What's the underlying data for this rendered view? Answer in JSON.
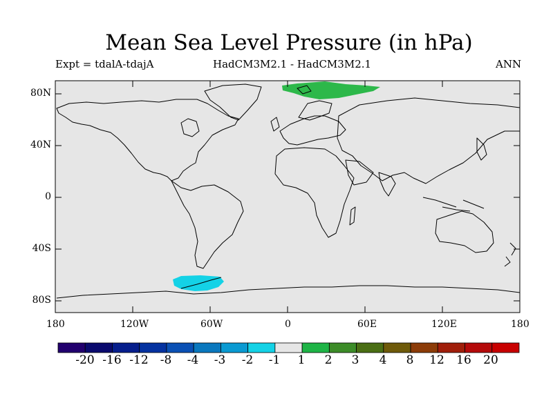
{
  "title": "Mean Sea Level Pressure (in hPa)",
  "subtitle_left": "Expt = tdalA-tdajA",
  "subtitle_center": "HadCM3M2.1 - HadCM3M2.1",
  "subtitle_right": "ANN",
  "lon_ticks": [
    "180",
    "120W",
    "60W",
    "0",
    "60E",
    "120E",
    "180"
  ],
  "lat_ticks": [
    "80N",
    "40N",
    "0",
    "40S",
    "80S"
  ],
  "colorbar": {
    "labels": [
      "-20",
      "-16",
      "-12",
      "-8",
      "-4",
      "-3",
      "-2",
      "-1",
      "1",
      "2",
      "3",
      "4",
      "8",
      "12",
      "16",
      "20"
    ],
    "colors": [
      "#22006e",
      "#0a0a6e",
      "#061e8c",
      "#0432a0",
      "#0a50b4",
      "#0a78be",
      "#0a9ad2",
      "#14d2e6",
      "#e6e6e6",
      "#1eb446",
      "#3c8c28",
      "#4a6e14",
      "#6e5a0a",
      "#8c3c08",
      "#a01e0a",
      "#b40a0a",
      "#c80000"
    ]
  },
  "colors": {
    "ocean_background": "#e6e6e6",
    "positive_anomaly": "#2db84a",
    "negative_anomaly": "#14d2e6"
  }
}
